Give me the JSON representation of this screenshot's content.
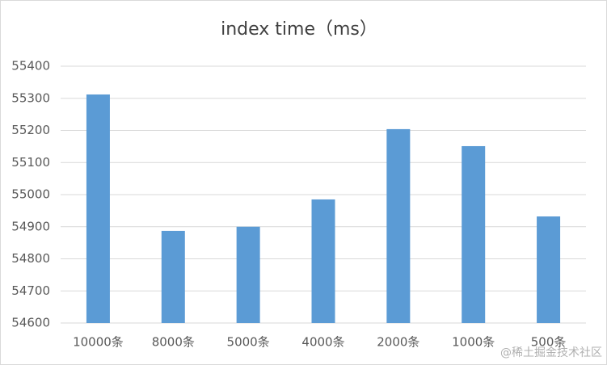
{
  "chart_data": {
    "type": "bar",
    "title": "index time（ms）",
    "categories": [
      "10000条",
      "8000条",
      "5000条",
      "4000条",
      "2000条",
      "1000条",
      "500条"
    ],
    "values": [
      55312,
      54887,
      54900,
      54985,
      55204,
      55151,
      54932
    ],
    "color": "#5b9bd5",
    "ylim": [
      54600,
      55400
    ],
    "yticks": [
      54600,
      54700,
      54800,
      54900,
      55000,
      55100,
      55200,
      55300,
      55400
    ],
    "grid": true,
    "watermark": "@稀土掘金技术社区"
  }
}
